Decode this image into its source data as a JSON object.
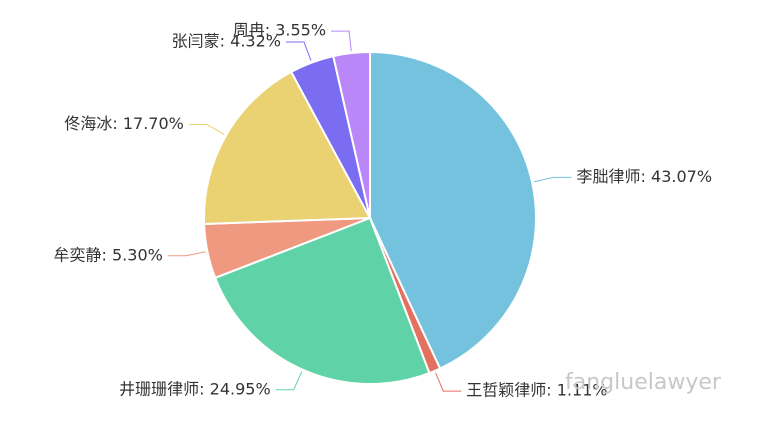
{
  "chart_data": {
    "type": "pie",
    "values": [
      43.07,
      1.11,
      24.95,
      5.3,
      17.7,
      4.32,
      3.55
    ],
    "value_labels": [
      "李朏律师: 43.07%",
      "王哲颖律师: 1.11%",
      "井珊珊律师: 24.95%",
      "牟奕静: 5.30%",
      "佟海冰: 17.70%",
      "张闫蒙: 4.32%",
      "周冉: 3.55%"
    ],
    "colors": [
      "#74c2de",
      "#e4705f",
      "#5fd3a7",
      "#ef9980",
      "#ead172",
      "#7a6df2",
      "#b987f8"
    ]
  },
  "watermark": "fangluelawyer"
}
